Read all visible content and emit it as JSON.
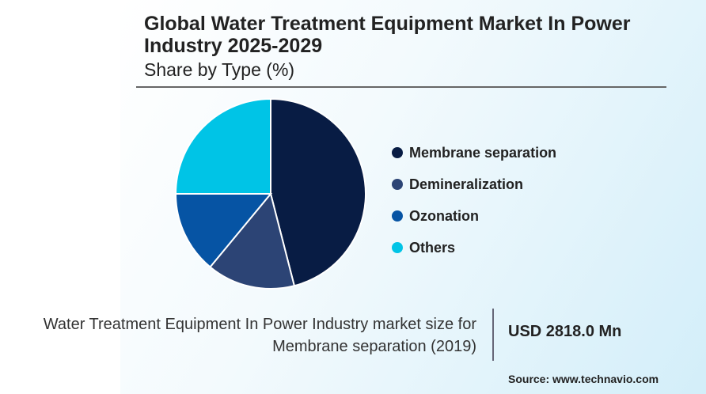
{
  "header": {
    "title": "Global Water Treatment Equipment Market In Power Industry 2025-2029",
    "subtitle": "Share by Type (%)"
  },
  "chart_data": {
    "type": "pie",
    "title": "Global Water Treatment Equipment Market In Power Industry 2025-2029",
    "subtitle": "Share by Type (%)",
    "legend_position": "right",
    "categories": [
      "Membrane separation",
      "Demineralization",
      "Ozonation",
      "Others"
    ],
    "values": [
      46,
      15,
      14,
      25
    ],
    "colors": [
      "#081c44",
      "#2c4475",
      "#0654a4",
      "#00c4e6"
    ]
  },
  "footer": {
    "description": "Water Treatment Equipment In Power Industry market size for Membrane separation (2019)",
    "value": "USD 2818.0 Mn",
    "source": "Source: www.technavio.com"
  }
}
